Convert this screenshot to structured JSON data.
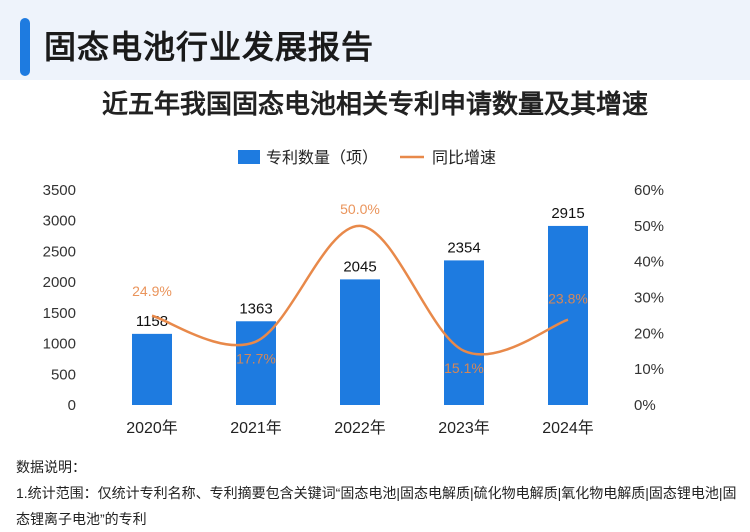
{
  "header": {
    "title": "固态电池行业发展报告"
  },
  "notes": {
    "heading": "数据说明：",
    "line1": "1.统计范围：仅统计专利名称、专利摘要包含关键词“固态电池|固态电解质|硫化物电解质|氧化物电解质|固态锂电池|固态锂离子电池”的专利"
  },
  "colors": {
    "bar": "#1e7be0",
    "line": "#e8894a",
    "line_label": "#e8894a",
    "accent": "#1e7be0"
  },
  "chart_data": {
    "type": "bar",
    "title": "近五年我国固态电池相关专利申请数量及其增速",
    "categories": [
      "2020年",
      "2021年",
      "2022年",
      "2023年",
      "2024年"
    ],
    "series": [
      {
        "name": "专利数量（项）",
        "type": "bar",
        "axis": "left",
        "values": [
          1158,
          1363,
          2045,
          2354,
          2915
        ],
        "labels": [
          "1158",
          "1363",
          "2045",
          "2354",
          "2915"
        ]
      },
      {
        "name": "同比增速",
        "type": "line",
        "axis": "right",
        "values": [
          24.9,
          17.7,
          50.0,
          15.1,
          23.8
        ],
        "labels": [
          "24.9%",
          "17.7%",
          "50.0%",
          "15.1%",
          "23.8%"
        ]
      }
    ],
    "y_left": {
      "min": 0,
      "max": 3500,
      "ticks": [
        "0",
        "500",
        "1000",
        "1500",
        "2000",
        "2500",
        "3000",
        "3500"
      ]
    },
    "y_right": {
      "min": 0,
      "max": 60,
      "ticks": [
        "0%",
        "10%",
        "20%",
        "30%",
        "40%",
        "50%",
        "60%"
      ]
    },
    "legend": "top-center",
    "grid": false
  }
}
